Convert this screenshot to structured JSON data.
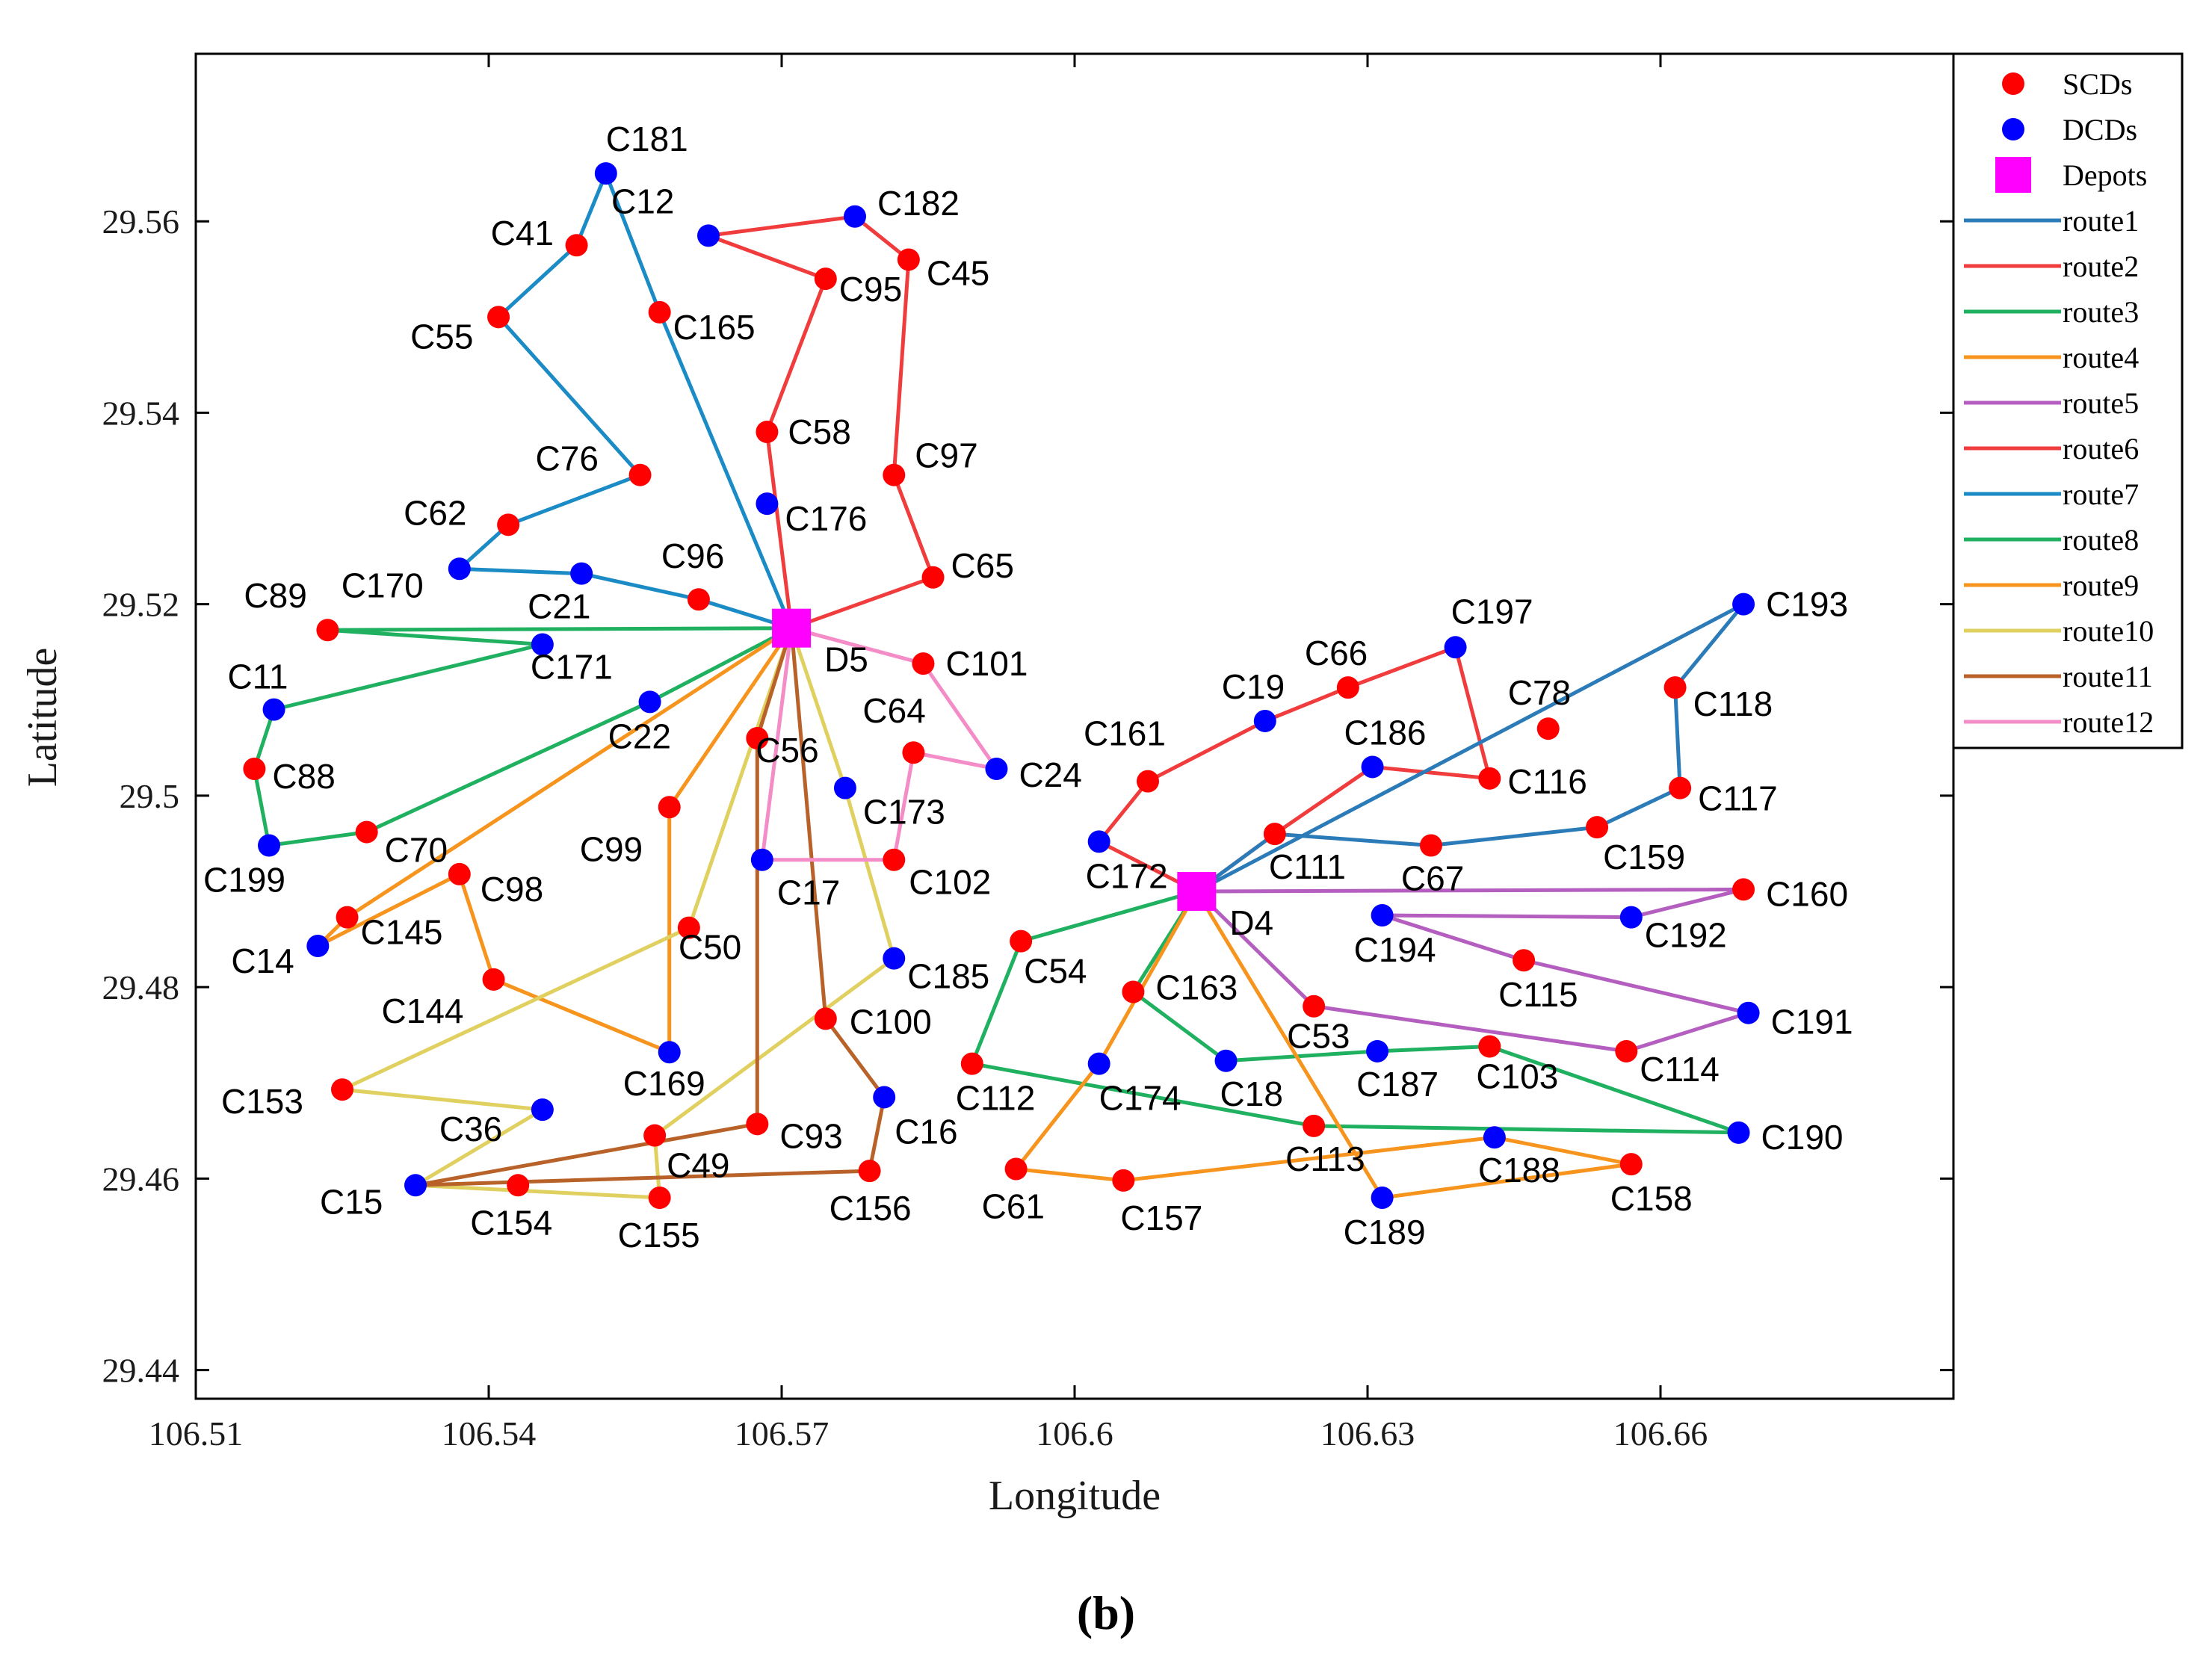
{
  "chart_data": {
    "type": "scatter",
    "xlabel": "Longitude",
    "ylabel": "Latitude",
    "xlim": [
      106.51,
      106.69
    ],
    "ylim": [
      29.437,
      29.5775
    ],
    "xticks": [
      106.51,
      106.54,
      106.57,
      106.6,
      106.63,
      106.66
    ],
    "xtick_labels": [
      "106.51",
      "106.54",
      "106.57",
      "106.6",
      "106.63",
      "106.66"
    ],
    "yticks": [
      29.44,
      29.46,
      29.48,
      29.5,
      29.52,
      29.54,
      29.56
    ],
    "ytick_labels": [
      "29.44",
      "29.46",
      "29.48",
      "29.5",
      "29.52",
      "29.54",
      "29.56"
    ],
    "caption": "(b)",
    "legend": [
      {
        "label": "SCDs",
        "kind": "marker",
        "color": "#ff0000"
      },
      {
        "label": "DCDs",
        "kind": "marker",
        "color": "#0000ff"
      },
      {
        "label": "Depots",
        "kind": "square",
        "color": "#ff00ff"
      },
      {
        "label": "route1",
        "kind": "line",
        "color": "#2b7bb9"
      },
      {
        "label": "route2",
        "kind": "line",
        "color": "#f03c3c"
      },
      {
        "label": "route3",
        "kind": "line",
        "color": "#1fb060"
      },
      {
        "label": "route4",
        "kind": "line",
        "color": "#f7941d"
      },
      {
        "label": "route5",
        "kind": "line",
        "color": "#b45fc0"
      },
      {
        "label": "route6",
        "kind": "line",
        "color": "#f03c3c"
      },
      {
        "label": "route7",
        "kind": "line",
        "color": "#1b8bc6"
      },
      {
        "label": "route8",
        "kind": "line",
        "color": "#1fb060"
      },
      {
        "label": "route9",
        "kind": "line",
        "color": "#f7941d"
      },
      {
        "label": "route10",
        "kind": "line",
        "color": "#e0d060"
      },
      {
        "label": "route11",
        "kind": "line",
        "color": "#b8622a"
      },
      {
        "label": "route12",
        "kind": "line",
        "color": "#f48cc8"
      }
    ],
    "depots": [
      {
        "id": "D5",
        "x": 106.571,
        "y": 29.5175
      },
      {
        "id": "D4",
        "x": 106.6125,
        "y": 29.49
      }
    ],
    "points": [
      {
        "id": "C181",
        "x": 106.552,
        "y": 29.565,
        "type": "DCD"
      },
      {
        "id": "C12",
        "x": 106.5625,
        "y": 29.5585,
        "type": "DCD"
      },
      {
        "id": "C182",
        "x": 106.5775,
        "y": 29.5605,
        "type": "DCD"
      },
      {
        "id": "C41",
        "x": 106.549,
        "y": 29.5575,
        "type": "SCD"
      },
      {
        "id": "C45",
        "x": 106.583,
        "y": 29.556,
        "type": "SCD"
      },
      {
        "id": "C95",
        "x": 106.5745,
        "y": 29.554,
        "type": "SCD"
      },
      {
        "id": "C55",
        "x": 106.541,
        "y": 29.55,
        "type": "SCD"
      },
      {
        "id": "C165",
        "x": 106.5575,
        "y": 29.5505,
        "type": "SCD"
      },
      {
        "id": "C58",
        "x": 106.5685,
        "y": 29.538,
        "type": "SCD"
      },
      {
        "id": "C97",
        "x": 106.5815,
        "y": 29.5335,
        "type": "SCD"
      },
      {
        "id": "C76",
        "x": 106.5555,
        "y": 29.5335,
        "type": "SCD"
      },
      {
        "id": "C176",
        "x": 106.5685,
        "y": 29.5305,
        "type": "DCD"
      },
      {
        "id": "C62",
        "x": 106.542,
        "y": 29.5283,
        "type": "SCD"
      },
      {
        "id": "C170",
        "x": 106.537,
        "y": 29.5237,
        "type": "DCD"
      },
      {
        "id": "C21",
        "x": 106.5495,
        "y": 29.5232,
        "type": "DCD"
      },
      {
        "id": "C96",
        "x": 106.5615,
        "y": 29.5205,
        "type": "SCD"
      },
      {
        "id": "C65",
        "x": 106.5855,
        "y": 29.5228,
        "type": "SCD"
      },
      {
        "id": "C89",
        "x": 106.5235,
        "y": 29.5173,
        "type": "SCD"
      },
      {
        "id": "C171",
        "x": 106.5455,
        "y": 29.5158,
        "type": "DCD"
      },
      {
        "id": "C101",
        "x": 106.5845,
        "y": 29.5138,
        "type": "SCD"
      },
      {
        "id": "C11",
        "x": 106.518,
        "y": 29.509,
        "type": "DCD"
      },
      {
        "id": "C22",
        "x": 106.5565,
        "y": 29.5098,
        "type": "DCD"
      },
      {
        "id": "C56",
        "x": 106.5675,
        "y": 29.506,
        "type": "SCD"
      },
      {
        "id": "C64",
        "x": 106.5835,
        "y": 29.5045,
        "type": "SCD"
      },
      {
        "id": "C24",
        "x": 106.592,
        "y": 29.5028,
        "type": "DCD"
      },
      {
        "id": "C173",
        "x": 106.5765,
        "y": 29.5008,
        "type": "DCD"
      },
      {
        "id": "C88",
        "x": 106.516,
        "y": 29.5028,
        "type": "SCD"
      },
      {
        "id": "C99",
        "x": 106.5585,
        "y": 29.4988,
        "type": "SCD"
      },
      {
        "id": "C70",
        "x": 106.5275,
        "y": 29.4962,
        "type": "SCD"
      },
      {
        "id": "C199",
        "x": 106.5175,
        "y": 29.4948,
        "type": "DCD"
      },
      {
        "id": "C17",
        "x": 106.568,
        "y": 29.4933,
        "type": "DCD"
      },
      {
        "id": "C102",
        "x": 106.5815,
        "y": 29.4933,
        "type": "SCD"
      },
      {
        "id": "C98",
        "x": 106.537,
        "y": 29.4918,
        "type": "SCD"
      },
      {
        "id": "C145",
        "x": 106.5255,
        "y": 29.4873,
        "type": "SCD"
      },
      {
        "id": "C50",
        "x": 106.5605,
        "y": 29.4862,
        "type": "SCD"
      },
      {
        "id": "C14",
        "x": 106.5225,
        "y": 29.4843,
        "type": "DCD"
      },
      {
        "id": "C185",
        "x": 106.5815,
        "y": 29.483,
        "type": "DCD"
      },
      {
        "id": "C144",
        "x": 106.5405,
        "y": 29.4808,
        "type": "SCD"
      },
      {
        "id": "C100",
        "x": 106.5745,
        "y": 29.4767,
        "type": "SCD"
      },
      {
        "id": "C169",
        "x": 106.5585,
        "y": 29.4732,
        "type": "DCD"
      },
      {
        "id": "C153",
        "x": 106.525,
        "y": 29.4693,
        "type": "SCD"
      },
      {
        "id": "C16",
        "x": 106.5805,
        "y": 29.4685,
        "type": "DCD"
      },
      {
        "id": "C36",
        "x": 106.5455,
        "y": 29.4672,
        "type": "DCD"
      },
      {
        "id": "C93",
        "x": 106.5675,
        "y": 29.4657,
        "type": "SCD"
      },
      {
        "id": "C49",
        "x": 106.557,
        "y": 29.4645,
        "type": "SCD"
      },
      {
        "id": "C156",
        "x": 106.579,
        "y": 29.4608,
        "type": "SCD"
      },
      {
        "id": "C15",
        "x": 106.5325,
        "y": 29.4593,
        "type": "DCD"
      },
      {
        "id": "C154",
        "x": 106.543,
        "y": 29.4593,
        "type": "SCD"
      },
      {
        "id": "C155",
        "x": 106.5575,
        "y": 29.458,
        "type": "SCD"
      },
      {
        "id": "C193",
        "x": 106.6685,
        "y": 29.52,
        "type": "DCD"
      },
      {
        "id": "C197",
        "x": 106.639,
        "y": 29.5155,
        "type": "DCD"
      },
      {
        "id": "C66",
        "x": 106.628,
        "y": 29.5113,
        "type": "SCD"
      },
      {
        "id": "C118",
        "x": 106.6615,
        "y": 29.5113,
        "type": "SCD"
      },
      {
        "id": "C19",
        "x": 106.6195,
        "y": 29.5078,
        "type": "DCD"
      },
      {
        "id": "C78",
        "x": 106.6485,
        "y": 29.507,
        "type": "SCD"
      },
      {
        "id": "C186",
        "x": 106.6305,
        "y": 29.503,
        "type": "DCD"
      },
      {
        "id": "C116",
        "x": 106.6425,
        "y": 29.5018,
        "type": "SCD"
      },
      {
        "id": "C161",
        "x": 106.6075,
        "y": 29.5015,
        "type": "SCD"
      },
      {
        "id": "C117",
        "x": 106.662,
        "y": 29.5008,
        "type": "SCD"
      },
      {
        "id": "C159",
        "x": 106.6535,
        "y": 29.4967,
        "type": "SCD"
      },
      {
        "id": "C111",
        "x": 106.6205,
        "y": 29.496,
        "type": "SCD"
      },
      {
        "id": "C172",
        "x": 106.6025,
        "y": 29.4952,
        "type": "DCD"
      },
      {
        "id": "C67",
        "x": 106.6365,
        "y": 29.4948,
        "type": "SCD"
      },
      {
        "id": "C160",
        "x": 106.6685,
        "y": 29.4902,
        "type": "SCD"
      },
      {
        "id": "C194",
        "x": 106.6315,
        "y": 29.4875,
        "type": "DCD"
      },
      {
        "id": "C192",
        "x": 106.657,
        "y": 29.4873,
        "type": "DCD"
      },
      {
        "id": "C54",
        "x": 106.5945,
        "y": 29.4848,
        "type": "SCD"
      },
      {
        "id": "C115",
        "x": 106.646,
        "y": 29.4828,
        "type": "SCD"
      },
      {
        "id": "C163",
        "x": 106.606,
        "y": 29.4795,
        "type": "SCD"
      },
      {
        "id": "C53",
        "x": 106.6245,
        "y": 29.478,
        "type": "SCD"
      },
      {
        "id": "C191",
        "x": 106.669,
        "y": 29.4773,
        "type": "DCD"
      },
      {
        "id": "C103",
        "x": 106.6425,
        "y": 29.4738,
        "type": "SCD"
      },
      {
        "id": "C187",
        "x": 106.631,
        "y": 29.4733,
        "type": "DCD"
      },
      {
        "id": "C114",
        "x": 106.6565,
        "y": 29.4733,
        "type": "SCD"
      },
      {
        "id": "C18",
        "x": 106.6155,
        "y": 29.4723,
        "type": "DCD"
      },
      {
        "id": "C112",
        "x": 106.5895,
        "y": 29.472,
        "type": "SCD"
      },
      {
        "id": "C174",
        "x": 106.6025,
        "y": 29.472,
        "type": "DCD"
      },
      {
        "id": "C113",
        "x": 106.6245,
        "y": 29.4655,
        "type": "SCD"
      },
      {
        "id": "C190",
        "x": 106.668,
        "y": 29.4648,
        "type": "DCD"
      },
      {
        "id": "C188",
        "x": 106.643,
        "y": 29.4643,
        "type": "DCD"
      },
      {
        "id": "C158",
        "x": 106.657,
        "y": 29.4615,
        "type": "SCD"
      },
      {
        "id": "C61",
        "x": 106.594,
        "y": 29.461,
        "type": "SCD"
      },
      {
        "id": "C157",
        "x": 106.605,
        "y": 29.4598,
        "type": "SCD"
      },
      {
        "id": "C189",
        "x": 106.6315,
        "y": 29.458,
        "type": "DCD"
      }
    ],
    "routes": [
      {
        "name": "route7",
        "color": "#1b8bc6",
        "stops": [
          "D5",
          "C165",
          "C181",
          "C41",
          "C55",
          "C76",
          "C62",
          "C170",
          "C21",
          "C96",
          "D5"
        ]
      },
      {
        "name": "route2",
        "color": "#f03c3c",
        "stops": [
          "D5",
          "C58",
          "C95",
          "C12",
          "C182",
          "C45",
          "C97",
          "C65",
          "D5"
        ]
      },
      {
        "name": "route8",
        "color": "#1fb060",
        "stops": [
          "D5",
          "C89",
          "C171",
          "C11",
          "C88",
          "C199",
          "C70",
          "C22",
          "D5"
        ]
      },
      {
        "name": "route9",
        "color": "#f7941d",
        "stops": [
          "D5",
          "C145",
          "C14",
          "C98",
          "C144",
          "C169",
          "C99",
          "D5"
        ]
      },
      {
        "name": "route10",
        "color": "#e0d060",
        "stops": [
          "D5",
          "C50",
          "C153",
          "C36",
          "C15",
          "C155",
          "C49",
          "C185",
          "C173",
          "D5"
        ]
      },
      {
        "name": "route11",
        "color": "#b8622a",
        "stops": [
          "D5",
          "C100",
          "C16",
          "C156",
          "C15",
          "C93",
          "C56",
          "D5"
        ]
      },
      {
        "name": "route12",
        "color": "#f48cc8",
        "stops": [
          "D5",
          "C101",
          "C24",
          "C64",
          "C102",
          "C17",
          "D5"
        ]
      },
      {
        "name": "route6",
        "color": "#f03c3c",
        "stops": [
          "D4",
          "C172",
          "C161",
          "C19",
          "C66",
          "C197",
          "C116",
          "C186",
          "C111",
          "D4"
        ]
      },
      {
        "name": "route1",
        "color": "#2b7bb9",
        "stops": [
          "D4",
          "C193",
          "C118",
          "C117",
          "C159",
          "C67",
          "C111",
          "D4"
        ]
      },
      {
        "name": "route5",
        "color": "#b45fc0",
        "stops": [
          "D4",
          "C160",
          "C192",
          "C194",
          "C115",
          "C191",
          "C114",
          "C53",
          "D4"
        ]
      },
      {
        "name": "route3",
        "color": "#1fb060",
        "stops": [
          "D4",
          "C54",
          "C112",
          "C113",
          "C190",
          "C103",
          "C187",
          "C18",
          "C163",
          "D4"
        ]
      },
      {
        "name": "route4",
        "color": "#f7941d",
        "stops": [
          "D4",
          "C174",
          "C61",
          "C157",
          "C188",
          "C158",
          "C189",
          "D4"
        ]
      }
    ]
  }
}
